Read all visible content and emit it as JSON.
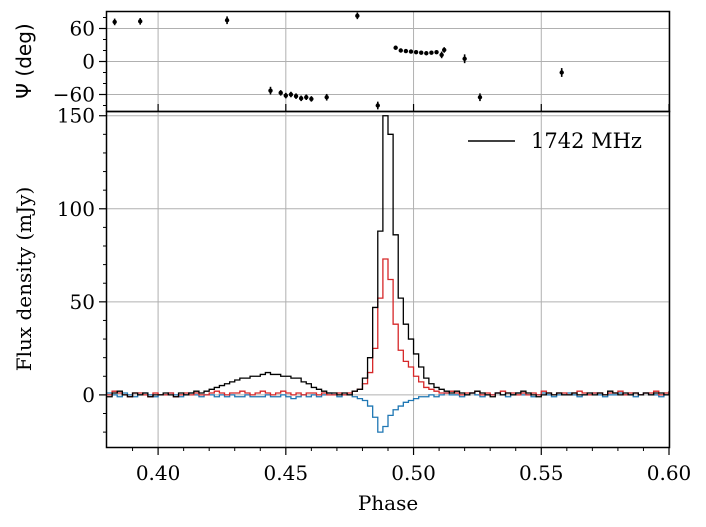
{
  "chart_data": [
    {
      "type": "scatter",
      "panel": "top",
      "ylabel": "Ψ (deg)",
      "xlim": [
        0.38,
        0.6
      ],
      "ylim": [
        -90,
        90
      ],
      "yticks": [
        60,
        0,
        -60
      ],
      "ytick_labels": [
        "60",
        "0",
        "−60"
      ],
      "grid": true,
      "points": [
        {
          "x": 0.383,
          "y": 72,
          "err": 6
        },
        {
          "x": 0.393,
          "y": 73,
          "err": 6
        },
        {
          "x": 0.427,
          "y": 75,
          "err": 7
        },
        {
          "x": 0.444,
          "y": -53,
          "err": 7
        },
        {
          "x": 0.448,
          "y": -57,
          "err": 5
        },
        {
          "x": 0.45,
          "y": -62,
          "err": 5
        },
        {
          "x": 0.452,
          "y": -60,
          "err": 5
        },
        {
          "x": 0.454,
          "y": -63,
          "err": 5
        },
        {
          "x": 0.456,
          "y": -67,
          "err": 5
        },
        {
          "x": 0.458,
          "y": -65,
          "err": 5
        },
        {
          "x": 0.46,
          "y": -68,
          "err": 5
        },
        {
          "x": 0.466,
          "y": -65,
          "err": 6
        },
        {
          "x": 0.478,
          "y": 83,
          "err": 6
        },
        {
          "x": 0.486,
          "y": -80,
          "err": 7
        },
        {
          "x": 0.493,
          "y": 25,
          "err": 2
        },
        {
          "x": 0.495,
          "y": 20,
          "err": 2
        },
        {
          "x": 0.497,
          "y": 19,
          "err": 2
        },
        {
          "x": 0.499,
          "y": 18,
          "err": 2
        },
        {
          "x": 0.501,
          "y": 17,
          "err": 2
        },
        {
          "x": 0.503,
          "y": 16,
          "err": 2
        },
        {
          "x": 0.505,
          "y": 15,
          "err": 2
        },
        {
          "x": 0.507,
          "y": 16,
          "err": 2
        },
        {
          "x": 0.509,
          "y": 17,
          "err": 3
        },
        {
          "x": 0.511,
          "y": 12,
          "err": 6
        },
        {
          "x": 0.512,
          "y": 21,
          "err": 5
        },
        {
          "x": 0.52,
          "y": 5,
          "err": 8
        },
        {
          "x": 0.526,
          "y": -65,
          "err": 7
        },
        {
          "x": 0.558,
          "y": -20,
          "err": 8
        }
      ]
    },
    {
      "type": "line",
      "panel": "bottom",
      "style": "step",
      "xlabel": "Phase",
      "ylabel": "Flux density (mJy)",
      "xlim": [
        0.38,
        0.6
      ],
      "ylim": [
        -28,
        152
      ],
      "xticks": [
        0.4,
        0.45,
        0.5,
        0.55,
        0.6
      ],
      "xtick_labels": [
        "0.40",
        "0.45",
        "0.50",
        "0.55",
        "0.60"
      ],
      "yticks": [
        0,
        50,
        100,
        150
      ],
      "ytick_labels": [
        "0",
        "50",
        "100",
        "150"
      ],
      "grid": true,
      "legend": {
        "position": "top-right",
        "entries": [
          {
            "label": "1742 MHz",
            "color": "#000000"
          }
        ]
      },
      "bin_start": 0.38,
      "bin_width": 0.002,
      "series": [
        {
          "color": "#000000",
          "values": [
            -1,
            1,
            2,
            0,
            -1,
            1,
            0,
            1,
            -1,
            0,
            0,
            1,
            0,
            -1,
            1,
            0,
            1,
            2,
            1,
            2,
            3,
            4,
            5,
            6,
            7,
            8,
            9,
            9,
            10,
            10,
            11,
            12,
            11,
            11,
            10,
            10,
            9,
            9,
            7,
            6,
            4,
            3,
            2,
            1,
            1,
            0,
            1,
            0,
            2,
            3,
            9,
            20,
            47,
            88,
            150,
            140,
            86,
            52,
            38,
            30,
            22,
            15,
            9,
            6,
            4,
            3,
            2,
            1,
            2,
            1,
            0,
            1,
            2,
            1,
            0,
            -1,
            1,
            0,
            1,
            0,
            1,
            2,
            1,
            0,
            -1,
            0,
            1,
            0,
            1,
            0,
            0,
            1,
            0,
            0,
            1,
            0,
            1,
            0,
            2,
            1,
            0,
            1,
            0,
            1,
            0,
            1,
            0,
            1,
            1,
            0,
            2
          ]
        },
        {
          "color": "#d62728",
          "values": [
            0,
            2,
            1,
            0,
            -1,
            1,
            1,
            0,
            -1,
            1,
            0,
            0,
            1,
            -1,
            0,
            1,
            0,
            1,
            0,
            0,
            1,
            2,
            1,
            0,
            1,
            1,
            2,
            1,
            0,
            1,
            2,
            1,
            0,
            1,
            2,
            1,
            0,
            1,
            0,
            1,
            1,
            0,
            1,
            0,
            0,
            1,
            0,
            1,
            2,
            3,
            6,
            12,
            25,
            52,
            73,
            62,
            38,
            24,
            18,
            15,
            10,
            7,
            4,
            3,
            2,
            1,
            1,
            2,
            1,
            0,
            1,
            1,
            2,
            0,
            1,
            0,
            1,
            2,
            1,
            1,
            0,
            1,
            0,
            1,
            0,
            2,
            1,
            0,
            1,
            1,
            0,
            1,
            2,
            1,
            0,
            1,
            1,
            0,
            1,
            1,
            2,
            0,
            1,
            1,
            0,
            1,
            1,
            2,
            0,
            1,
            1
          ]
        },
        {
          "color": "#1f77b4",
          "values": [
            1,
            0,
            -1,
            1,
            0,
            -1,
            0,
            1,
            0,
            -1,
            0,
            0,
            1,
            0,
            -1,
            0,
            1,
            0,
            -1,
            0,
            0,
            -1,
            0,
            -1,
            0,
            -1,
            -1,
            0,
            -1,
            -1,
            -1,
            0,
            -1,
            -1,
            0,
            -1,
            -2,
            -1,
            0,
            -1,
            0,
            -1,
            0,
            1,
            0,
            -1,
            0,
            0,
            -1,
            -2,
            -3,
            -6,
            -12,
            -20,
            -17,
            -11,
            -8,
            -6,
            -4,
            -3,
            -2,
            -1,
            -1,
            0,
            -1,
            0,
            1,
            0,
            0,
            -1,
            0,
            1,
            0,
            -1,
            0,
            0,
            1,
            0,
            -1,
            0,
            1,
            0,
            0,
            -1,
            0,
            1,
            0,
            -1,
            0,
            0,
            1,
            0,
            -1,
            0,
            0,
            1,
            0,
            -1,
            0,
            0,
            1,
            0,
            0,
            -1,
            0,
            1,
            0,
            0,
            -1,
            0,
            1
          ]
        }
      ]
    }
  ]
}
